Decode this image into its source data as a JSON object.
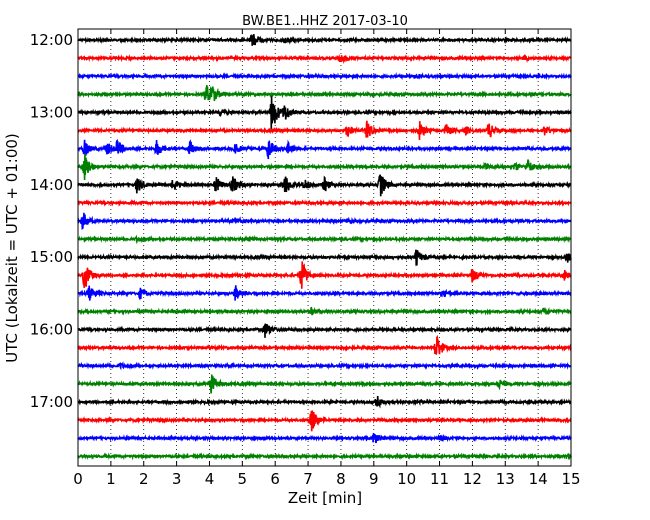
{
  "chart_data": {
    "type": "line",
    "title": "BW.BE1..HHZ 2017-03-10",
    "xlabel": "Zeit  [min]",
    "ylabel": "UTC (Lokalzeit = UTC + 01:00)",
    "xlim": [
      0,
      15
    ],
    "x_ticks": [
      "0",
      "1",
      "2",
      "3",
      "4",
      "5",
      "6",
      "7",
      "8",
      "9",
      "10",
      "11",
      "12",
      "13",
      "14",
      "15"
    ],
    "y_tick_labels": [
      "12:00",
      "13:00",
      "14:00",
      "15:00",
      "16:00",
      "17:00"
    ],
    "grid": "vertical dotted",
    "trace_colors": [
      "#000000",
      "#ff0000",
      "#0000ff",
      "#008000"
    ],
    "series": [
      {
        "start": "12:00",
        "events": [
          [
            5.3,
            9
          ],
          [
            6.3,
            3
          ]
        ]
      },
      {
        "start": "12:15",
        "events": [
          [
            8.0,
            5
          ],
          [
            13.6,
            2
          ]
        ]
      },
      {
        "start": "12:30",
        "events": [
          [
            10.3,
            2
          ]
        ]
      },
      {
        "start": "12:45",
        "events": [
          [
            3.9,
            10
          ],
          [
            4.1,
            6
          ]
        ]
      },
      {
        "start": "13:00",
        "events": [
          [
            5.9,
            20
          ],
          [
            6.3,
            8
          ],
          [
            4.3,
            3
          ]
        ]
      },
      {
        "start": "13:15",
        "events": [
          [
            8.2,
            7
          ],
          [
            8.8,
            9
          ],
          [
            10.4,
            9
          ],
          [
            11.2,
            6
          ],
          [
            11.8,
            4
          ],
          [
            12.5,
            8
          ],
          [
            14.2,
            5
          ]
        ]
      },
      {
        "start": "13:30",
        "events": [
          [
            0.2,
            8
          ],
          [
            0.9,
            6
          ],
          [
            1.2,
            7
          ],
          [
            2.4,
            8
          ],
          [
            3.4,
            7
          ],
          [
            4.8,
            5
          ],
          [
            5.8,
            10
          ],
          [
            6.4,
            5
          ]
        ]
      },
      {
        "start": "13:45",
        "events": [
          [
            0.2,
            14
          ],
          [
            12.4,
            3
          ],
          [
            13.3,
            4
          ],
          [
            13.7,
            6
          ]
        ]
      },
      {
        "start": "14:00",
        "events": [
          [
            1.8,
            8
          ],
          [
            2.9,
            6
          ],
          [
            4.2,
            8
          ],
          [
            4.7,
            9
          ],
          [
            6.3,
            10
          ],
          [
            6.9,
            6
          ],
          [
            7.5,
            7
          ],
          [
            9.2,
            13
          ]
        ]
      },
      {
        "start": "14:15",
        "events": []
      },
      {
        "start": "14:30",
        "events": [
          [
            0.15,
            9
          ],
          [
            4.8,
            3
          ],
          [
            8.2,
            2
          ]
        ]
      },
      {
        "start": "14:45",
        "events": [
          [
            1.8,
            2
          ],
          [
            5.2,
            2
          ]
        ]
      },
      {
        "start": "15:00",
        "events": [
          [
            10.3,
            8
          ],
          [
            14.9,
            5
          ]
        ]
      },
      {
        "start": "15:15",
        "events": [
          [
            0.2,
            15
          ],
          [
            6.8,
            16
          ],
          [
            12.0,
            7
          ],
          [
            14.8,
            5
          ]
        ]
      },
      {
        "start": "15:30",
        "events": [
          [
            0.35,
            9
          ],
          [
            1.9,
            5
          ],
          [
            4.8,
            8
          ],
          [
            11.1,
            3
          ]
        ]
      },
      {
        "start": "15:45",
        "events": [
          [
            7.1,
            3
          ],
          [
            14.2,
            4
          ]
        ]
      },
      {
        "start": "16:00",
        "events": [
          [
            5.7,
            8
          ]
        ]
      },
      {
        "start": "16:15",
        "events": [
          [
            10.9,
            14
          ]
        ]
      },
      {
        "start": "16:30",
        "events": [
          [
            1.3,
            2
          ]
        ]
      },
      {
        "start": "16:45",
        "events": [
          [
            4.05,
            11
          ],
          [
            12.8,
            5
          ]
        ]
      },
      {
        "start": "17:00",
        "events": [
          [
            9.1,
            6
          ],
          [
            10.3,
            2
          ]
        ]
      },
      {
        "start": "17:15",
        "events": [
          [
            7.1,
            12
          ]
        ]
      },
      {
        "start": "17:30",
        "events": [
          [
            9.0,
            7
          ],
          [
            11.0,
            3
          ]
        ]
      },
      {
        "start": "17:45",
        "events": [
          [
            14.9,
            3
          ]
        ]
      }
    ]
  }
}
